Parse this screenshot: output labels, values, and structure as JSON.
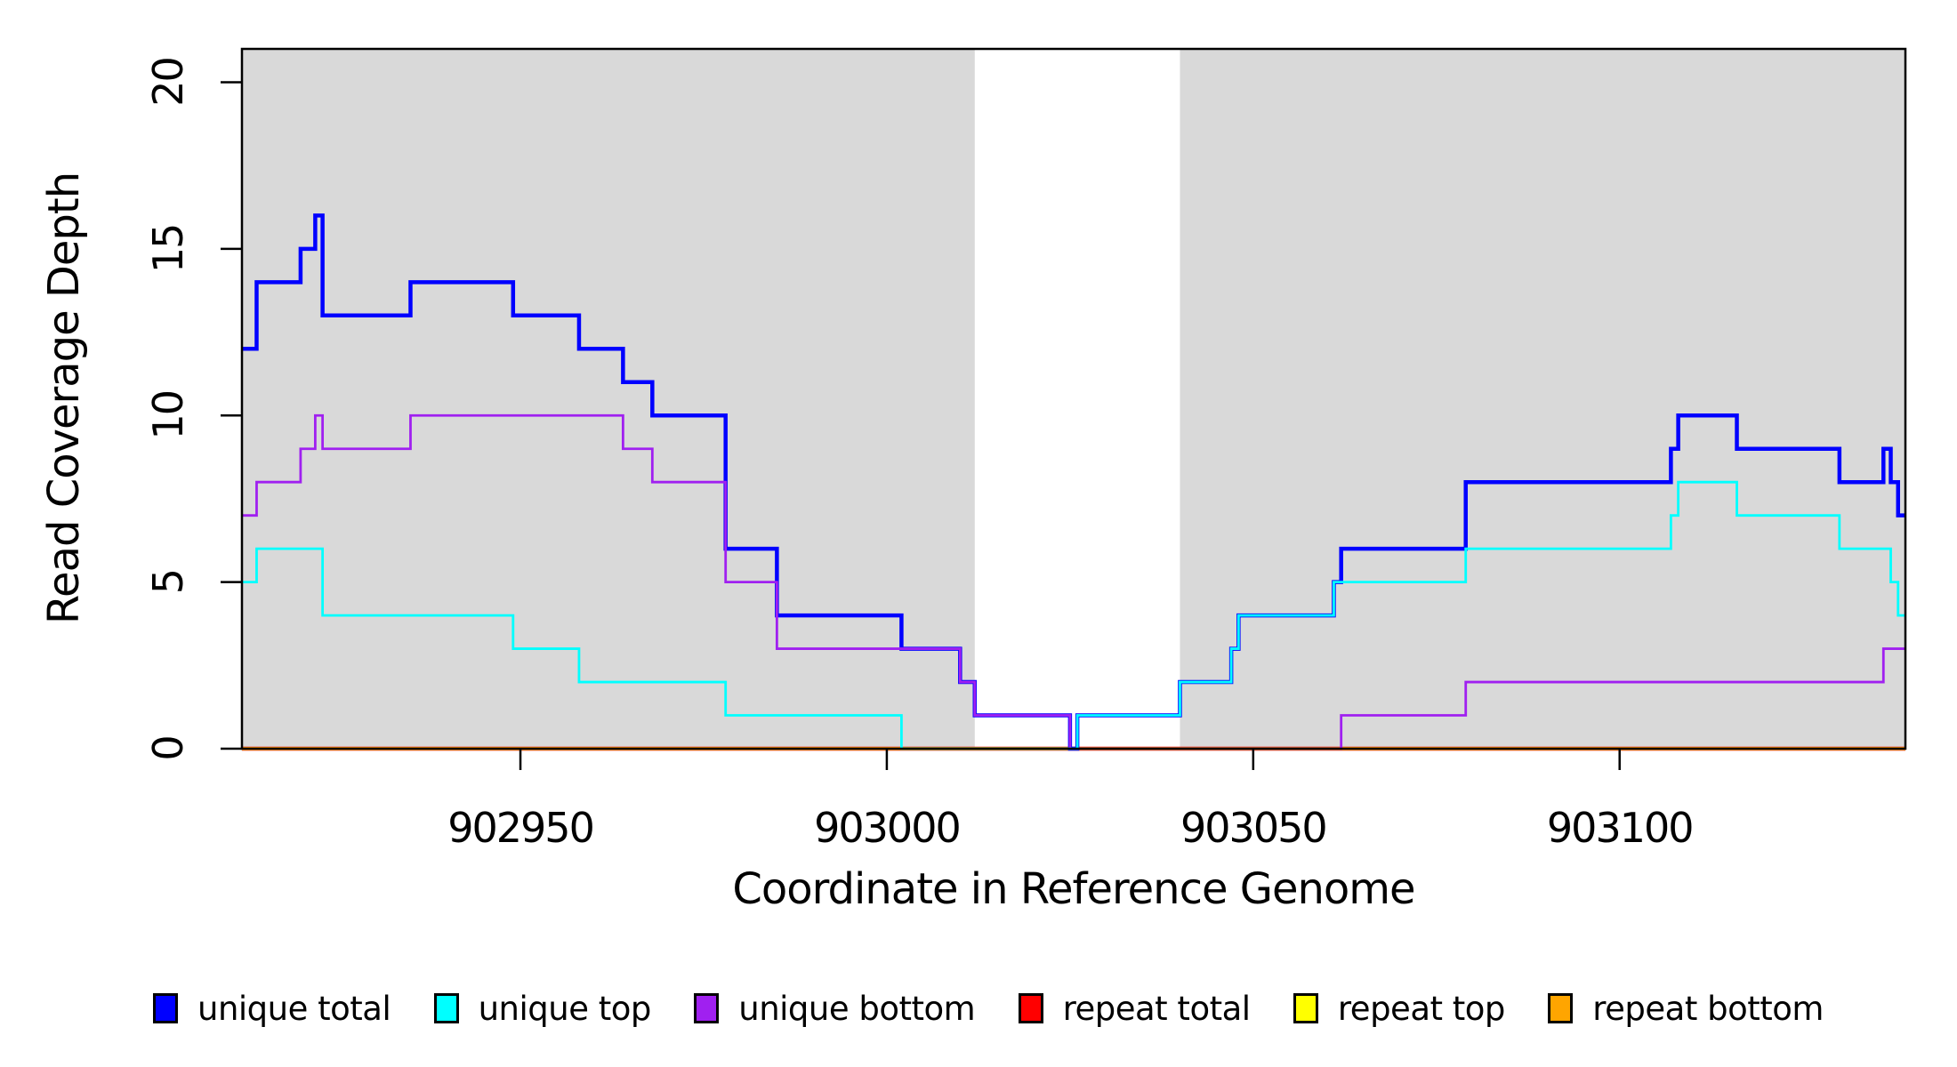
{
  "chart_data": {
    "type": "line",
    "subtype": "step-coverage-plot",
    "title": "",
    "xlabel": "Coordinate in Reference Genome",
    "ylabel": "Read Coverage Depth",
    "xlim": [
      902912,
      903139
    ],
    "ylim": [
      0,
      21
    ],
    "xticks": [
      902950,
      903000,
      903050,
      903100
    ],
    "yticks": [
      0,
      5,
      10,
      15,
      20
    ],
    "grid": false,
    "legend_position": "bottom",
    "plot_background": "#ffffff",
    "highlight_color": "#D9D9D9",
    "background_regions": [
      {
        "name": "gray-region-left",
        "x0": 902912,
        "x1": 903012
      },
      {
        "name": "gray-region-right",
        "x0": 903040,
        "x1": 903139
      }
    ],
    "gap_region": {
      "x0": 903012,
      "x1": 903040
    },
    "xend": 903139,
    "series": [
      {
        "name": "repeat-total",
        "label": "repeat total",
        "color": "#FF0000",
        "width": 4.5,
        "steps": [
          [
            902912,
            0
          ]
        ]
      },
      {
        "name": "repeat-top",
        "label": "repeat top",
        "color": "#FFFF00",
        "width": 3.5,
        "steps": [
          [
            902912,
            0
          ]
        ]
      },
      {
        "name": "repeat-bottom",
        "label": "repeat bottom",
        "color": "#FFA500",
        "width": 3,
        "steps": [
          [
            902912,
            0
          ]
        ]
      },
      {
        "name": "unique-total",
        "label": "unique total",
        "color": "#0000FF",
        "width": 4.5,
        "steps": [
          [
            902912,
            12
          ],
          [
            902914,
            14
          ],
          [
            902920,
            15
          ],
          [
            902922,
            16
          ],
          [
            902923,
            13
          ],
          [
            902935,
            14
          ],
          [
            902949,
            13
          ],
          [
            902958,
            12
          ],
          [
            902964,
            11
          ],
          [
            902968,
            10
          ],
          [
            902978,
            6
          ],
          [
            902985,
            4
          ],
          [
            903002,
            3
          ],
          [
            903010,
            2
          ],
          [
            903012,
            1
          ],
          [
            903025,
            0
          ],
          [
            903026,
            1
          ],
          [
            903040,
            2
          ],
          [
            903047,
            3
          ],
          [
            903048,
            4
          ],
          [
            903061,
            5
          ],
          [
            903062,
            6
          ],
          [
            903079,
            8
          ],
          [
            903107,
            9
          ],
          [
            903108,
            10
          ],
          [
            903116,
            9
          ],
          [
            903130,
            8
          ],
          [
            903136,
            9
          ],
          [
            903137,
            8
          ],
          [
            903138,
            7
          ]
        ]
      },
      {
        "name": "unique-bottom",
        "label": "unique bottom",
        "color": "#A020F0",
        "width": 2.8,
        "steps": [
          [
            902912,
            7
          ],
          [
            902914,
            8
          ],
          [
            902920,
            9
          ],
          [
            902922,
            10
          ],
          [
            902923,
            9
          ],
          [
            902935,
            10
          ],
          [
            902964,
            9
          ],
          [
            902968,
            8
          ],
          [
            902978,
            5
          ],
          [
            902985,
            3
          ],
          [
            903010,
            2
          ],
          [
            903012,
            1
          ],
          [
            903025,
            0
          ],
          [
            903062,
            1
          ],
          [
            903079,
            2
          ],
          [
            903136,
            3
          ]
        ]
      },
      {
        "name": "unique-top",
        "label": "unique top",
        "color": "#00FFFF",
        "width": 2.8,
        "steps": [
          [
            902912,
            5
          ],
          [
            902914,
            6
          ],
          [
            902923,
            4
          ],
          [
            902949,
            3
          ],
          [
            902958,
            2
          ],
          [
            902978,
            1
          ],
          [
            903002,
            0
          ],
          [
            903026,
            1
          ],
          [
            903040,
            2
          ],
          [
            903047,
            3
          ],
          [
            903048,
            4
          ],
          [
            903061,
            5
          ],
          [
            903079,
            6
          ],
          [
            903107,
            7
          ],
          [
            903108,
            8
          ],
          [
            903116,
            7
          ],
          [
            903130,
            6
          ],
          [
            903137,
            5
          ],
          [
            903138,
            4
          ]
        ]
      }
    ],
    "legend": [
      {
        "label": "unique total",
        "color": "#0000FF"
      },
      {
        "label": "unique top",
        "color": "#00FFFF"
      },
      {
        "label": "unique bottom",
        "color": "#A020F0"
      },
      {
        "label": "repeat total",
        "color": "#FF0000"
      },
      {
        "label": "repeat top",
        "color": "#FFFF00"
      },
      {
        "label": "repeat bottom",
        "color": "#FFA500"
      }
    ]
  }
}
